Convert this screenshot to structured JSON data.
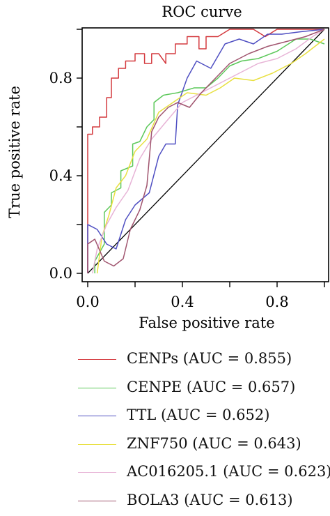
{
  "chart_data": {
    "type": "line",
    "title": "ROC curve",
    "xlabel": "False positive rate",
    "ylabel": "True positive rate",
    "xlim": [
      0,
      1
    ],
    "ylim": [
      0,
      1
    ],
    "xticks": [
      0,
      0.2,
      0.4,
      0.6,
      0.8,
      1.0
    ],
    "xtick_labels": [
      "0.0",
      "",
      "0.4",
      "",
      "0.8",
      ""
    ],
    "yticks": [
      0,
      0.2,
      0.4,
      0.6,
      0.8,
      1.0
    ],
    "ytick_labels": [
      "0.0",
      "",
      "0.4",
      "",
      "0.8",
      ""
    ],
    "reference_line": [
      [
        0,
        0
      ],
      [
        1,
        1
      ]
    ],
    "legend_position": "bottom",
    "series": [
      {
        "name": "CENPs (AUC = 0.855)",
        "color": "#d43a3f",
        "points": [
          [
            0,
            0
          ],
          [
            0,
            0.57
          ],
          [
            0.02,
            0.57
          ],
          [
            0.02,
            0.6
          ],
          [
            0.05,
            0.6
          ],
          [
            0.05,
            0.64
          ],
          [
            0.08,
            0.64
          ],
          [
            0.08,
            0.72
          ],
          [
            0.1,
            0.72
          ],
          [
            0.1,
            0.8
          ],
          [
            0.13,
            0.8
          ],
          [
            0.13,
            0.84
          ],
          [
            0.16,
            0.84
          ],
          [
            0.16,
            0.87
          ],
          [
            0.2,
            0.87
          ],
          [
            0.2,
            0.9
          ],
          [
            0.24,
            0.9
          ],
          [
            0.24,
            0.86
          ],
          [
            0.27,
            0.86
          ],
          [
            0.27,
            0.9
          ],
          [
            0.3,
            0.9
          ],
          [
            0.33,
            0.86
          ],
          [
            0.33,
            0.9
          ],
          [
            0.37,
            0.9
          ],
          [
            0.37,
            0.94
          ],
          [
            0.42,
            0.94
          ],
          [
            0.42,
            0.97
          ],
          [
            0.47,
            0.97
          ],
          [
            0.47,
            0.92
          ],
          [
            0.5,
            0.92
          ],
          [
            0.5,
            0.97
          ],
          [
            0.55,
            0.97
          ],
          [
            0.6,
            1.0
          ],
          [
            0.7,
            1.0
          ],
          [
            0.75,
            0.97
          ],
          [
            0.8,
            1.0
          ],
          [
            1.0,
            1.0
          ]
        ]
      },
      {
        "name": "CENPE (AUC = 0.657)",
        "color": "#5cc85a",
        "points": [
          [
            0.03,
            0
          ],
          [
            0.03,
            0.05
          ],
          [
            0.07,
            0.12
          ],
          [
            0.07,
            0.25
          ],
          [
            0.1,
            0.28
          ],
          [
            0.1,
            0.33
          ],
          [
            0.14,
            0.35
          ],
          [
            0.14,
            0.42
          ],
          [
            0.19,
            0.44
          ],
          [
            0.19,
            0.53
          ],
          [
            0.22,
            0.54
          ],
          [
            0.25,
            0.6
          ],
          [
            0.28,
            0.63
          ],
          [
            0.28,
            0.7
          ],
          [
            0.32,
            0.73
          ],
          [
            0.38,
            0.74
          ],
          [
            0.45,
            0.76
          ],
          [
            0.5,
            0.76
          ],
          [
            0.55,
            0.8
          ],
          [
            0.6,
            0.85
          ],
          [
            0.65,
            0.87
          ],
          [
            0.72,
            0.88
          ],
          [
            0.8,
            0.91
          ],
          [
            0.88,
            0.96
          ],
          [
            0.94,
            0.96
          ],
          [
            1.0,
            0.94
          ]
        ]
      },
      {
        "name": "TTL (AUC = 0.652)",
        "color": "#4f4fc2",
        "points": [
          [
            0,
            0
          ],
          [
            0,
            0.2
          ],
          [
            0.04,
            0.18
          ],
          [
            0.08,
            0.12
          ],
          [
            0.12,
            0.1
          ],
          [
            0.16,
            0.22
          ],
          [
            0.2,
            0.28
          ],
          [
            0.26,
            0.33
          ],
          [
            0.3,
            0.48
          ],
          [
            0.33,
            0.53
          ],
          [
            0.37,
            0.53
          ],
          [
            0.38,
            0.69
          ],
          [
            0.42,
            0.8
          ],
          [
            0.46,
            0.87
          ],
          [
            0.52,
            0.84
          ],
          [
            0.58,
            0.94
          ],
          [
            0.64,
            0.96
          ],
          [
            0.7,
            0.94
          ],
          [
            0.76,
            0.98
          ],
          [
            0.82,
            0.98
          ],
          [
            0.9,
            0.99
          ],
          [
            1.0,
            1.0
          ]
        ]
      },
      {
        "name": "ZNF750 (AUC = 0.643)",
        "color": "#e8e040",
        "points": [
          [
            0.04,
            0
          ],
          [
            0.06,
            0.15
          ],
          [
            0.09,
            0.24
          ],
          [
            0.12,
            0.35
          ],
          [
            0.16,
            0.4
          ],
          [
            0.2,
            0.5
          ],
          [
            0.25,
            0.55
          ],
          [
            0.3,
            0.66
          ],
          [
            0.36,
            0.7
          ],
          [
            0.42,
            0.74
          ],
          [
            0.5,
            0.73
          ],
          [
            0.56,
            0.76
          ],
          [
            0.62,
            0.8
          ],
          [
            0.7,
            0.79
          ],
          [
            0.78,
            0.82
          ],
          [
            0.86,
            0.86
          ],
          [
            0.92,
            0.9
          ],
          [
            1.0,
            0.96
          ]
        ]
      },
      {
        "name": "AC016205.1 (AUC = 0.623)",
        "color": "#e7b3d6",
        "points": [
          [
            0.02,
            0
          ],
          [
            0.04,
            0.1
          ],
          [
            0.08,
            0.2
          ],
          [
            0.12,
            0.27
          ],
          [
            0.17,
            0.34
          ],
          [
            0.22,
            0.47
          ],
          [
            0.27,
            0.55
          ],
          [
            0.33,
            0.62
          ],
          [
            0.4,
            0.7
          ],
          [
            0.48,
            0.74
          ],
          [
            0.56,
            0.78
          ],
          [
            0.64,
            0.82
          ],
          [
            0.72,
            0.86
          ],
          [
            0.8,
            0.88
          ],
          [
            0.88,
            0.92
          ],
          [
            0.95,
            0.97
          ],
          [
            1.0,
            1.0
          ]
        ]
      },
      {
        "name": "BOLA3 (AUC = 0.613)",
        "color": "#a0546e",
        "points": [
          [
            0,
            0
          ],
          [
            0,
            0.12
          ],
          [
            0.03,
            0.14
          ],
          [
            0.07,
            0.05
          ],
          [
            0.11,
            0.03
          ],
          [
            0.15,
            0.06
          ],
          [
            0.18,
            0.18
          ],
          [
            0.22,
            0.26
          ],
          [
            0.25,
            0.36
          ],
          [
            0.27,
            0.58
          ],
          [
            0.3,
            0.64
          ],
          [
            0.34,
            0.68
          ],
          [
            0.38,
            0.7
          ],
          [
            0.43,
            0.68
          ],
          [
            0.48,
            0.74
          ],
          [
            0.54,
            0.8
          ],
          [
            0.6,
            0.86
          ],
          [
            0.68,
            0.9
          ],
          [
            0.76,
            0.93
          ],
          [
            0.84,
            0.95
          ],
          [
            0.92,
            0.97
          ],
          [
            1.0,
            1.0
          ]
        ]
      }
    ]
  }
}
